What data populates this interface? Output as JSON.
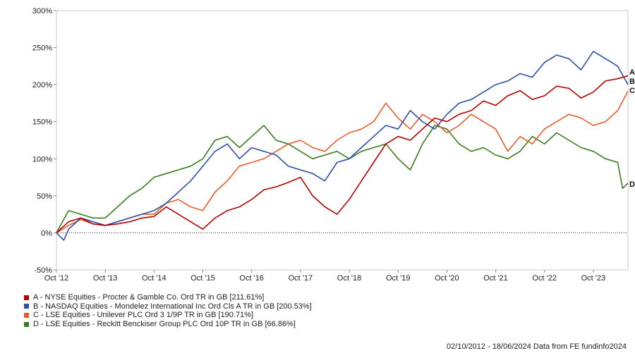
{
  "chart_data": {
    "type": "line",
    "ylim": [
      -50,
      300
    ],
    "y_ticks": [
      "-50%",
      "0%",
      "50%",
      "100%",
      "150%",
      "200%",
      "250%",
      "300%"
    ],
    "y_tick_values": [
      -50,
      0,
      50,
      100,
      150,
      200,
      250,
      300
    ],
    "x_ticks": [
      "Oct '12",
      "Oct '13",
      "Oct '14",
      "Oct '15",
      "Oct '16",
      "Oct '17",
      "Oct '18",
      "Oct '19",
      "Oct '20",
      "Oct '21",
      "Oct '22",
      "Oct '23"
    ],
    "x_tick_years": [
      2012.75,
      2013.75,
      2014.75,
      2015.75,
      2016.75,
      2017.75,
      2018.75,
      2019.75,
      2020.75,
      2021.75,
      2022.75,
      2023.75
    ],
    "xlim": [
      2012.75,
      2024.46
    ],
    "grid": false,
    "zero_line": "dotted",
    "legend_position": "bottom-left",
    "series": [
      {
        "id": "A",
        "name": "A - NYSE Equities - Procter & Gamble Co. Ord TR in GB [211.61%]",
        "color": "#b40000",
        "x": [
          2012.75,
          2013.0,
          2013.25,
          2013.5,
          2013.75,
          2014.0,
          2014.25,
          2014.5,
          2014.75,
          2015.0,
          2015.25,
          2015.5,
          2015.75,
          2016.0,
          2016.25,
          2016.5,
          2016.75,
          2017.0,
          2017.25,
          2017.5,
          2017.75,
          2018.0,
          2018.25,
          2018.5,
          2018.75,
          2019.0,
          2019.25,
          2019.5,
          2019.75,
          2020.0,
          2020.25,
          2020.5,
          2020.75,
          2021.0,
          2021.25,
          2021.5,
          2021.75,
          2022.0,
          2022.25,
          2022.5,
          2022.75,
          2023.0,
          2023.25,
          2023.5,
          2023.75,
          2024.0,
          2024.25,
          2024.46
        ],
        "y": [
          0,
          15,
          20,
          12,
          10,
          12,
          15,
          20,
          22,
          35,
          25,
          15,
          5,
          20,
          30,
          35,
          45,
          58,
          62,
          68,
          75,
          50,
          35,
          25,
          45,
          70,
          95,
          120,
          130,
          125,
          140,
          155,
          150,
          160,
          165,
          178,
          172,
          185,
          192,
          180,
          185,
          198,
          195,
          182,
          190,
          205,
          208,
          212
        ]
      },
      {
        "id": "B",
        "name": "B - NASDAQ Equities - Mondelez International Inc Ord Cls A TR in GB [200.53%]",
        "color": "#2b50a8",
        "x": [
          2012.75,
          2012.9,
          2013.0,
          2013.25,
          2013.5,
          2013.75,
          2014.0,
          2014.25,
          2014.5,
          2014.75,
          2015.0,
          2015.25,
          2015.5,
          2015.75,
          2016.0,
          2016.25,
          2016.5,
          2016.75,
          2017.0,
          2017.25,
          2017.5,
          2017.75,
          2018.0,
          2018.25,
          2018.5,
          2018.75,
          2019.0,
          2019.25,
          2019.5,
          2019.75,
          2020.0,
          2020.25,
          2020.5,
          2020.75,
          2021.0,
          2021.25,
          2021.5,
          2021.75,
          2022.0,
          2022.25,
          2022.5,
          2022.75,
          2023.0,
          2023.25,
          2023.5,
          2023.75,
          2024.0,
          2024.25,
          2024.46
        ],
        "y": [
          0,
          -10,
          5,
          20,
          15,
          10,
          15,
          20,
          25,
          30,
          40,
          55,
          70,
          90,
          110,
          120,
          100,
          115,
          110,
          105,
          90,
          85,
          80,
          70,
          95,
          100,
          115,
          130,
          145,
          140,
          165,
          150,
          140,
          160,
          175,
          180,
          190,
          200,
          205,
          215,
          210,
          230,
          240,
          235,
          220,
          245,
          235,
          225,
          200
        ]
      },
      {
        "id": "C",
        "name": "C - LSE Equities - Unilever PLC Ord 3 1/9P TR in GB [190.71%]",
        "color": "#e85b2a",
        "x": [
          2012.75,
          2013.0,
          2013.25,
          2013.5,
          2013.75,
          2014.0,
          2014.25,
          2014.5,
          2014.75,
          2015.0,
          2015.25,
          2015.5,
          2015.75,
          2016.0,
          2016.25,
          2016.5,
          2016.75,
          2017.0,
          2017.25,
          2017.5,
          2017.75,
          2018.0,
          2018.25,
          2018.5,
          2018.75,
          2019.0,
          2019.25,
          2019.5,
          2019.75,
          2020.0,
          2020.25,
          2020.5,
          2020.75,
          2021.0,
          2021.25,
          2021.5,
          2021.75,
          2022.0,
          2022.25,
          2022.5,
          2022.75,
          2023.0,
          2023.25,
          2023.5,
          2023.75,
          2024.0,
          2024.25,
          2024.46
        ],
        "y": [
          0,
          10,
          18,
          12,
          10,
          15,
          20,
          25,
          25,
          40,
          45,
          35,
          30,
          55,
          70,
          90,
          95,
          100,
          110,
          120,
          125,
          115,
          110,
          125,
          135,
          140,
          150,
          175,
          155,
          140,
          160,
          150,
          135,
          145,
          160,
          150,
          140,
          110,
          130,
          120,
          140,
          150,
          160,
          155,
          145,
          150,
          165,
          191
        ]
      },
      {
        "id": "D",
        "name": "D - LSE Equities - Reckitt Benckiser Group PLC Ord 10P TR in GB [66.86%]",
        "color": "#3a7d1e",
        "x": [
          2012.75,
          2013.0,
          2013.25,
          2013.5,
          2013.75,
          2014.0,
          2014.25,
          2014.5,
          2014.75,
          2015.0,
          2015.25,
          2015.5,
          2015.75,
          2016.0,
          2016.25,
          2016.5,
          2016.75,
          2017.0,
          2017.25,
          2017.5,
          2017.75,
          2018.0,
          2018.25,
          2018.5,
          2018.75,
          2019.0,
          2019.25,
          2019.5,
          2019.75,
          2020.0,
          2020.25,
          2020.5,
          2020.75,
          2021.0,
          2021.25,
          2021.5,
          2021.75,
          2022.0,
          2022.25,
          2022.5,
          2022.75,
          2023.0,
          2023.25,
          2023.5,
          2023.75,
          2024.0,
          2024.25,
          2024.35,
          2024.46
        ],
        "y": [
          0,
          30,
          25,
          20,
          20,
          35,
          50,
          60,
          75,
          80,
          85,
          90,
          100,
          125,
          130,
          115,
          130,
          145,
          125,
          120,
          110,
          100,
          105,
          110,
          100,
          110,
          115,
          120,
          100,
          85,
          120,
          145,
          140,
          120,
          110,
          115,
          105,
          100,
          110,
          130,
          120,
          135,
          125,
          115,
          110,
          100,
          95,
          60,
          67
        ]
      }
    ]
  },
  "footer": "02/10/2012 - 18/06/2024 Data from FE fundinfo2024"
}
